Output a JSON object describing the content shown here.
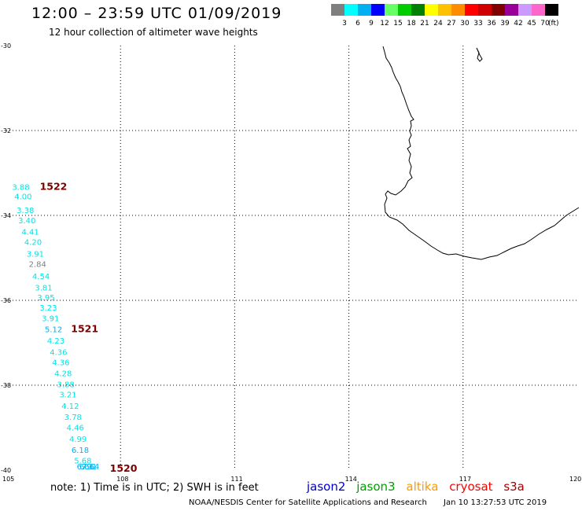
{
  "header": {
    "title": "12:00 – 23:59 UTC 01/09/2019",
    "subtitle": "12 hour collection of altimeter wave heights"
  },
  "colorbar": {
    "colors": [
      "#7f7f7f",
      "#00ffff",
      "#00b0f0",
      "#0000ff",
      "#66ff66",
      "#00cc00",
      "#008000",
      "#ffff00",
      "#ffc000",
      "#ff8c00",
      "#ff0000",
      "#d00000",
      "#800000",
      "#990099",
      "#cc99ff",
      "#ff66cc",
      "#000000"
    ],
    "labels": [
      "3",
      "6",
      "9",
      "12",
      "15",
      "18",
      "21",
      "24",
      "27",
      "30",
      "33",
      "36",
      "39",
      "42",
      "45",
      "70"
    ],
    "units": "(ft)"
  },
  "map": {
    "lon_range": [
      105,
      120
    ],
    "lat_range": [
      -40,
      -30
    ],
    "lon_ticks": [
      "105",
      "108",
      "111",
      "114",
      "117",
      "120"
    ],
    "lat_ticks": [
      "-30",
      "-32",
      "-34",
      "-36",
      "-38",
      "-40"
    ],
    "grid_lons": [
      108,
      111,
      114,
      117
    ],
    "grid_lats": [
      -32,
      -34,
      -36,
      -38
    ]
  },
  "swh": {
    "units": "ft",
    "observations": [
      {
        "value": "3.88",
        "lon": 105.4,
        "lat": -33.32,
        "color": "#00e5e5"
      },
      {
        "value": "4.00",
        "lon": 105.46,
        "lat": -33.55,
        "color": "#00e5e5"
      },
      {
        "value": "3.38",
        "lon": 105.52,
        "lat": -33.87,
        "color": "#00e5e5"
      },
      {
        "value": "3.40",
        "lon": 105.56,
        "lat": -34.11,
        "color": "#00e5e5"
      },
      {
        "value": "4.41",
        "lon": 105.65,
        "lat": -34.38,
        "color": "#00e5e5"
      },
      {
        "value": "4.20",
        "lon": 105.72,
        "lat": -34.62,
        "color": "#00e5e5"
      },
      {
        "value": "3.91",
        "lon": 105.78,
        "lat": -34.9,
        "color": "#00e5e5"
      },
      {
        "value": "2.84",
        "lon": 105.84,
        "lat": -35.14,
        "color": "#7f7f7f"
      },
      {
        "value": "4.54",
        "lon": 105.93,
        "lat": -35.43,
        "color": "#00e5e5"
      },
      {
        "value": "3.81",
        "lon": 106.0,
        "lat": -35.69,
        "color": "#00e5e5"
      },
      {
        "value": "3.95",
        "lon": 106.06,
        "lat": -35.93,
        "color": "#00e5e5"
      },
      {
        "value": "3.23",
        "lon": 106.12,
        "lat": -36.17,
        "color": "#00e5e5"
      },
      {
        "value": "3.91",
        "lon": 106.18,
        "lat": -36.42,
        "color": "#00e5e5"
      },
      {
        "value": "5.12",
        "lon": 106.26,
        "lat": -36.68,
        "color": "#00b0f0"
      },
      {
        "value": "4.23",
        "lon": 106.32,
        "lat": -36.94,
        "color": "#00e5e5"
      },
      {
        "value": "4.36",
        "lon": 106.39,
        "lat": -37.21,
        "color": "#00e5e5"
      },
      {
        "value": "4.36",
        "lon": 106.45,
        "lat": -37.45,
        "color": "#00e5e5"
      },
      {
        "value": "4.28",
        "lon": 106.51,
        "lat": -37.71,
        "color": "#00e5e5"
      },
      {
        "value": "3.88",
        "lon": 106.58,
        "lat": -37.97,
        "color": "#00e5e5"
      },
      {
        "value": "3.21",
        "lon": 106.64,
        "lat": -38.21,
        "color": "#00e5e5"
      },
      {
        "value": "4.12",
        "lon": 106.7,
        "lat": -38.48,
        "color": "#00e5e5"
      },
      {
        "value": "3.78",
        "lon": 106.77,
        "lat": -38.74,
        "color": "#00e5e5"
      },
      {
        "value": "4.46",
        "lon": 106.83,
        "lat": -38.99,
        "color": "#00e5e5"
      },
      {
        "value": "4.99",
        "lon": 106.9,
        "lat": -39.26,
        "color": "#00e5e5"
      },
      {
        "value": "6.18",
        "lon": 106.96,
        "lat": -39.52,
        "color": "#00b0f0"
      },
      {
        "value": "5.68",
        "lon": 107.03,
        "lat": -39.77,
        "color": "#00e5e5"
      },
      {
        "value": "6.66",
        "lon": 107.1,
        "lat": -40.02,
        "color": "#00b0f0"
      },
      {
        "value": "6.91",
        "lon": 107.17,
        "lat": -40.27,
        "color": "#00b0f0"
      },
      {
        "value": "7.14",
        "lon": 107.23,
        "lat": -40.45,
        "color": "#00b0f0"
      }
    ],
    "orbit_labels": [
      {
        "text": "1522",
        "lon": 105.88,
        "lat": -33.32
      },
      {
        "text": "1521",
        "lon": 106.7,
        "lat": -36.68
      },
      {
        "text": "1520",
        "lon": 107.72,
        "lat": -40.38
      }
    ]
  },
  "note": "note:  1) Time is in UTC;  2) SWH is in feet",
  "legend": [
    {
      "name": "jason2",
      "color": "#0000cc"
    },
    {
      "name": "jason3",
      "color": "#00a000"
    },
    {
      "name": "altika",
      "color": "#ff9900"
    },
    {
      "name": "cryosat",
      "color": "#ff0000"
    },
    {
      "name": "s3a",
      "color": "#aa0000"
    }
  ],
  "footer": {
    "credit": "NOAA/NESDIS Center for Satellite Applications and Research",
    "timestamp": "Jan 10 13:27:53 UTC 2019"
  }
}
